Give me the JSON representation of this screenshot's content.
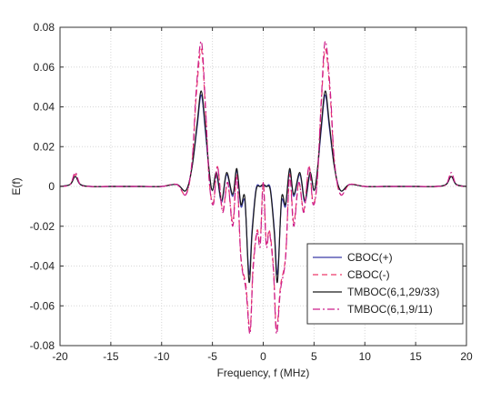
{
  "chart_data": {
    "type": "line",
    "title": "",
    "xlabel": "Frequency, f (MHz)",
    "ylabel": "E(f)",
    "xlim": [
      -20,
      20
    ],
    "ylim": [
      -0.08,
      0.08
    ],
    "x_ticks": [
      -20,
      -15,
      -10,
      -5,
      0,
      5,
      10,
      15,
      20
    ],
    "y_ticks": [
      -0.08,
      -0.06,
      -0.04,
      -0.02,
      0,
      0.02,
      0.04,
      0.06,
      0.08
    ],
    "x_tick_labels": [
      "-20",
      "-15",
      "-10",
      "-5",
      "0",
      "5",
      "10",
      "15",
      "20"
    ],
    "y_tick_labels": [
      "-0.08",
      "-0.06",
      "-0.04",
      "-0.02",
      "0",
      "0.02",
      "0.04",
      "0.06",
      "0.08"
    ],
    "grid": true,
    "legend_position": "bottom-right",
    "series": [
      {
        "name": "CBOC(+)",
        "color": "#3a3aa8",
        "dash": "solid",
        "x": [
          -20,
          -19,
          -18.5,
          -18,
          -17,
          -15,
          -12,
          -10,
          -8.5,
          -7.6,
          -7,
          -6.5,
          -6.1,
          -5.7,
          -5.3,
          -5,
          -4.6,
          -4.1,
          -3.6,
          -3,
          -2.6,
          -2.2,
          -1.8,
          -1.4,
          -1.1,
          -0.7,
          -0.3,
          0,
          0.3,
          0.7,
          1.1,
          1.4,
          1.8,
          2.2,
          2.6,
          3,
          3.6,
          4.1,
          4.6,
          5,
          5.3,
          5.7,
          6.1,
          6.5,
          7,
          7.6,
          8.5,
          10,
          12,
          15,
          17,
          18,
          18.5,
          19,
          20
        ],
        "values": [
          0,
          0.001,
          0.005,
          0.001,
          0,
          0,
          0,
          0,
          0.001,
          -0.002,
          0.01,
          0.03,
          0.046,
          0.028,
          0.006,
          -0.002,
          0.006,
          -0.008,
          0.006,
          -0.005,
          0.008,
          -0.01,
          -0.008,
          -0.044,
          -0.022,
          -0.001,
          0,
          0,
          0,
          -0.001,
          -0.022,
          -0.044,
          -0.008,
          -0.01,
          0.008,
          -0.005,
          0.006,
          -0.008,
          0.006,
          -0.002,
          0.006,
          0.028,
          0.046,
          0.03,
          0.01,
          -0.002,
          0.001,
          0,
          0,
          0,
          0,
          0.001,
          0.005,
          0.001,
          0
        ]
      },
      {
        "name": "CBOC(-)",
        "color": "#ee3b6a",
        "dash": "6,4",
        "x": [
          -20,
          -19,
          -18.5,
          -18,
          -17,
          -15,
          -12,
          -10,
          -8.5,
          -7.6,
          -7,
          -6.6,
          -6.1,
          -5.7,
          -5.3,
          -4.9,
          -4.5,
          -4,
          -3.5,
          -3,
          -2.6,
          -2.2,
          -1.7,
          -1.3,
          -1,
          -0.6,
          -0.3,
          0,
          0.3,
          0.6,
          1,
          1.3,
          1.7,
          2.2,
          2.6,
          3,
          3.5,
          4,
          4.5,
          4.9,
          5.3,
          5.7,
          6.1,
          6.6,
          7,
          7.6,
          8.5,
          10,
          12,
          15,
          17,
          18,
          18.5,
          19,
          20
        ],
        "values": [
          0,
          0.001,
          0.006,
          0.001,
          0,
          0,
          0,
          0,
          0.001,
          -0.004,
          0.012,
          0.045,
          0.069,
          0.04,
          0.002,
          -0.008,
          0.01,
          -0.012,
          0.002,
          -0.018,
          0.006,
          -0.035,
          -0.05,
          -0.072,
          -0.04,
          -0.022,
          -0.028,
          0.002,
          -0.028,
          -0.022,
          -0.04,
          -0.072,
          -0.05,
          -0.035,
          0.006,
          -0.018,
          0.002,
          -0.012,
          0.01,
          -0.008,
          0.002,
          0.04,
          0.069,
          0.045,
          0.012,
          -0.004,
          0.001,
          0,
          0,
          0,
          0,
          0.001,
          0.006,
          0.001,
          0
        ]
      },
      {
        "name": "TMBOC(6,1,29/33)",
        "color": "#1a1a1a",
        "dash": "solid",
        "x": [
          -20,
          -19,
          -18.5,
          -18,
          -17,
          -15,
          -12,
          -10,
          -8.5,
          -7.6,
          -7,
          -6.5,
          -6.1,
          -5.7,
          -5.3,
          -5,
          -4.6,
          -4.1,
          -3.6,
          -3,
          -2.6,
          -2.2,
          -1.8,
          -1.4,
          -1.1,
          -0.7,
          -0.3,
          0,
          0.3,
          0.7,
          1.1,
          1.4,
          1.8,
          2.2,
          2.6,
          3,
          3.6,
          4.1,
          4.6,
          5,
          5.3,
          5.7,
          6.1,
          6.5,
          7,
          7.6,
          8.5,
          10,
          12,
          15,
          17,
          18,
          18.5,
          19,
          20
        ],
        "values": [
          0,
          0.001,
          0.005,
          0.001,
          0,
          0,
          0,
          0,
          0.001,
          -0.002,
          0.01,
          0.032,
          0.048,
          0.03,
          0.007,
          -0.002,
          0.007,
          -0.007,
          0.007,
          -0.004,
          0.009,
          -0.009,
          -0.006,
          -0.048,
          -0.024,
          -0.002,
          0,
          0.001,
          0,
          -0.002,
          -0.024,
          -0.048,
          -0.006,
          -0.009,
          0.009,
          -0.004,
          0.007,
          -0.007,
          0.007,
          -0.002,
          0.007,
          0.03,
          0.048,
          0.032,
          0.01,
          -0.002,
          0.001,
          0,
          0,
          0,
          0,
          0.001,
          0.005,
          0.001,
          0
        ]
      },
      {
        "name": "TMBOC(6,1,9/11)",
        "color": "#cc1e8a",
        "dash": "8,3,2,3",
        "x": [
          -20,
          -19,
          -18.5,
          -18,
          -17,
          -15,
          -12,
          -10,
          -8.5,
          -7.6,
          -7,
          -6.6,
          -6.1,
          -5.7,
          -5.3,
          -4.9,
          -4.5,
          -4,
          -3.5,
          -3,
          -2.6,
          -2.2,
          -1.7,
          -1.3,
          -1,
          -0.6,
          -0.3,
          0,
          0.3,
          0.6,
          1,
          1.3,
          1.7,
          2.2,
          2.6,
          3,
          3.5,
          4,
          4.5,
          4.9,
          5.3,
          5.7,
          6.1,
          6.6,
          7,
          7.6,
          8.5,
          10,
          12,
          15,
          17,
          18,
          18.5,
          19,
          20
        ],
        "values": [
          0,
          0.001,
          0.007,
          0.001,
          0,
          0,
          0,
          0,
          0.001,
          -0.004,
          0.013,
          0.048,
          0.073,
          0.042,
          0.002,
          -0.009,
          0.01,
          -0.013,
          0.002,
          -0.02,
          0.005,
          -0.036,
          -0.052,
          -0.074,
          -0.042,
          -0.023,
          -0.03,
          0.002,
          -0.03,
          -0.023,
          -0.042,
          -0.074,
          -0.052,
          -0.036,
          0.005,
          -0.02,
          0.002,
          -0.013,
          0.01,
          -0.009,
          0.002,
          0.042,
          0.073,
          0.048,
          0.013,
          -0.004,
          0.001,
          0,
          0,
          0,
          0,
          0.001,
          0.007,
          0.001,
          0
        ]
      }
    ]
  }
}
